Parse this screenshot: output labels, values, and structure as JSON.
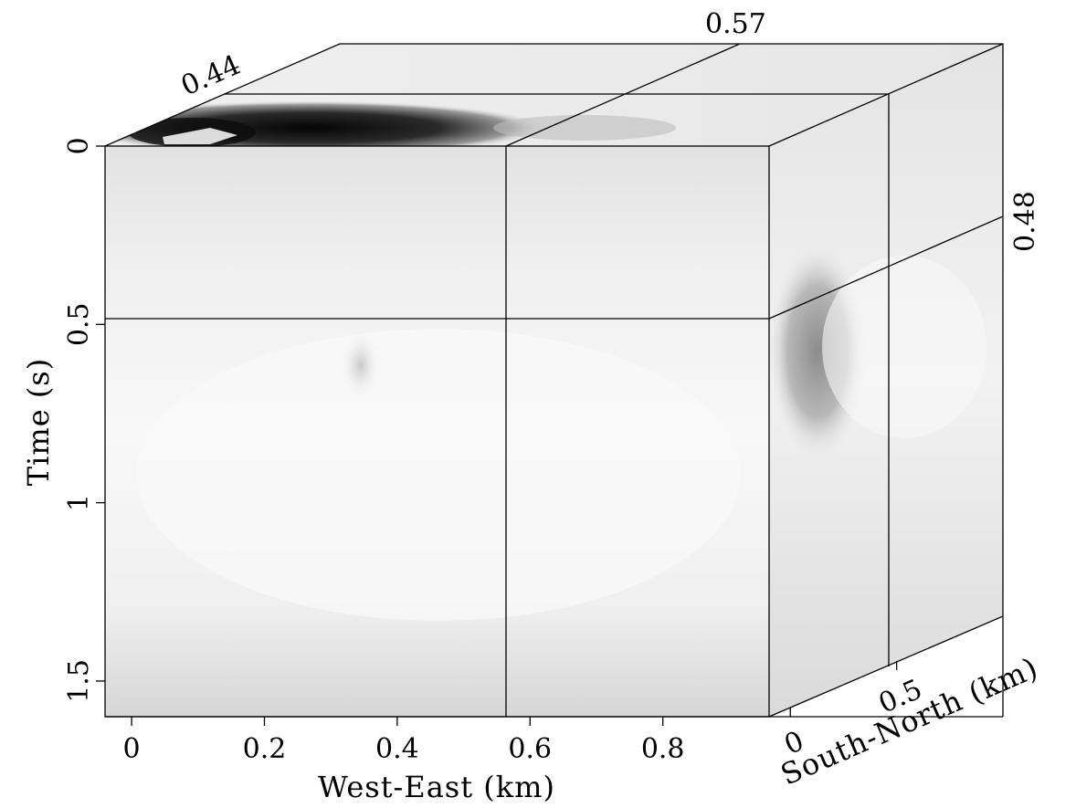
{
  "chart_data": {
    "type": "heatmap",
    "title": "",
    "colormap": "grayscale",
    "axes": {
      "x": {
        "label": "West-East (km)",
        "range": [
          -0.04,
          0.96
        ],
        "ticks": [
          "0",
          "0.2",
          "0.4",
          "0.6",
          "0.8"
        ],
        "tick_values": [
          0,
          0.2,
          0.4,
          0.6,
          0.8
        ]
      },
      "y": {
        "label": "Time (s)",
        "range": [
          0,
          1.6
        ],
        "inverted": true,
        "ticks": [
          "0",
          "0.5",
          "1",
          "1.5"
        ],
        "tick_values": [
          0,
          0.5,
          1,
          1.5
        ]
      },
      "z": {
        "label": "South-North (km)",
        "range": [
          -0.1,
          1.0
        ],
        "ticks": [
          "0",
          "0.5"
        ],
        "tick_values": [
          0,
          0.5
        ]
      }
    },
    "slices": {
      "x_label": "0.57",
      "x_value": 0.57,
      "y_label": "0.48",
      "y_value": 0.48,
      "z_label": "0.44",
      "z_value": 0.44
    },
    "features": [
      {
        "panel": "time-slice",
        "description": "dark anomaly near top-left",
        "x_range": [
          0.05,
          0.55
        ],
        "intensity": "high"
      },
      {
        "panel": "side",
        "description": "gray blob",
        "time_range": [
          0.4,
          0.85
        ],
        "intensity": "medium"
      },
      {
        "panel": "front",
        "description": "faint spot",
        "x": 0.35,
        "time": 0.62,
        "intensity": "low"
      }
    ]
  }
}
